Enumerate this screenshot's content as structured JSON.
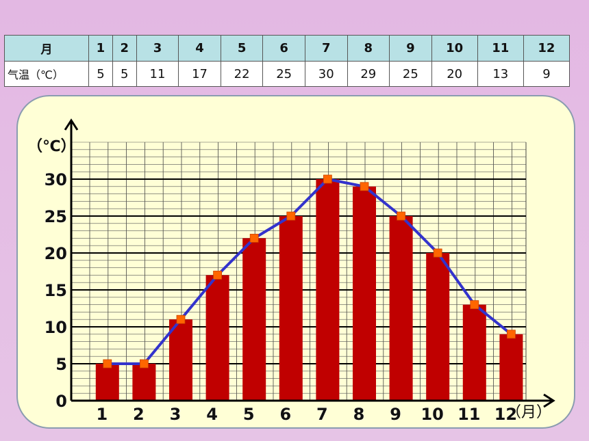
{
  "table": {
    "header_label": "月",
    "value_label": "气温（℃）",
    "months": [
      "1",
      "2",
      "3",
      "4",
      "5",
      "6",
      "7",
      "8",
      "9",
      "10",
      "11",
      "12"
    ],
    "temps": [
      "5",
      "5",
      "11",
      "17",
      "22",
      "25",
      "30",
      "29",
      "25",
      "20",
      "13",
      "9"
    ]
  },
  "chart_data": {
    "type": "bar",
    "overlay": "line",
    "categories": [
      "1",
      "2",
      "3",
      "4",
      "5",
      "6",
      "7",
      "8",
      "9",
      "10",
      "11",
      "12"
    ],
    "values": [
      5,
      5,
      11,
      17,
      22,
      25,
      30,
      29,
      25,
      20,
      13,
      9
    ],
    "ylabel": "（℃）",
    "xlabel": "（月）",
    "yticks": [
      "0",
      "5",
      "10",
      "15",
      "20",
      "25",
      "30"
    ],
    "ylim": [
      0,
      35
    ],
    "grid": true,
    "colors": {
      "bar": "#c00000",
      "line": "#3333cc",
      "marker": "#ff6600"
    }
  }
}
